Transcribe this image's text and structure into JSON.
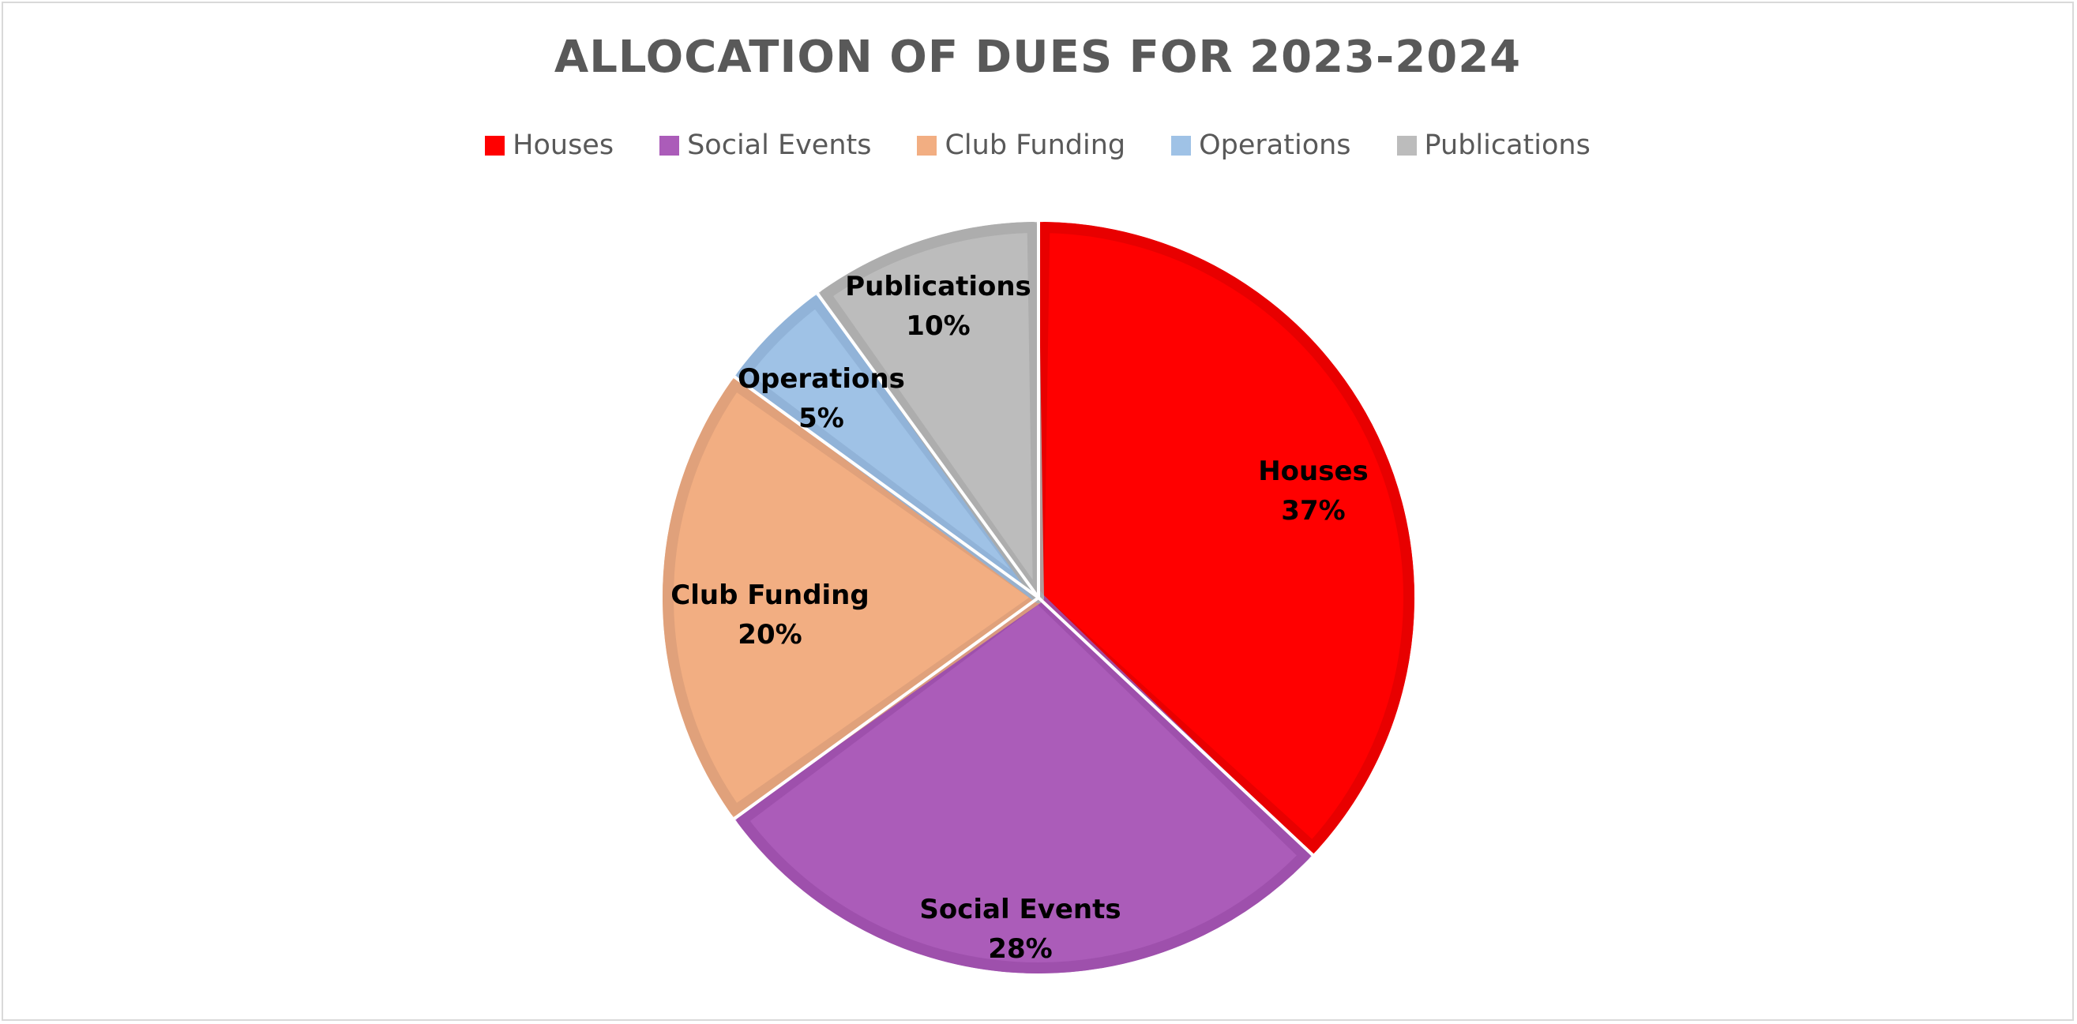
{
  "chart_data": {
    "type": "pie",
    "title": "ALLOCATION OF DUES FOR 2023-2024",
    "legend_position": "top",
    "slices": [
      {
        "label": "Houses",
        "value": 37,
        "value_label": "37%",
        "color": "#ff0000",
        "border": "#e60000"
      },
      {
        "label": "Social Events",
        "value": 28,
        "value_label": "28%",
        "color": "#ab5cb9",
        "border": "#9c4fab"
      },
      {
        "label": "Club Funding",
        "value": 20,
        "value_label": "20%",
        "color": "#f2ae82",
        "border": "#dea07a"
      },
      {
        "label": "Operations",
        "value": 5,
        "value_label": "5%",
        "color": "#9fc2e6",
        "border": "#8fb1d6"
      },
      {
        "label": "Publications",
        "value": 10,
        "value_label": "10%",
        "color": "#bcbcbc",
        "border": "#ababab"
      }
    ]
  }
}
